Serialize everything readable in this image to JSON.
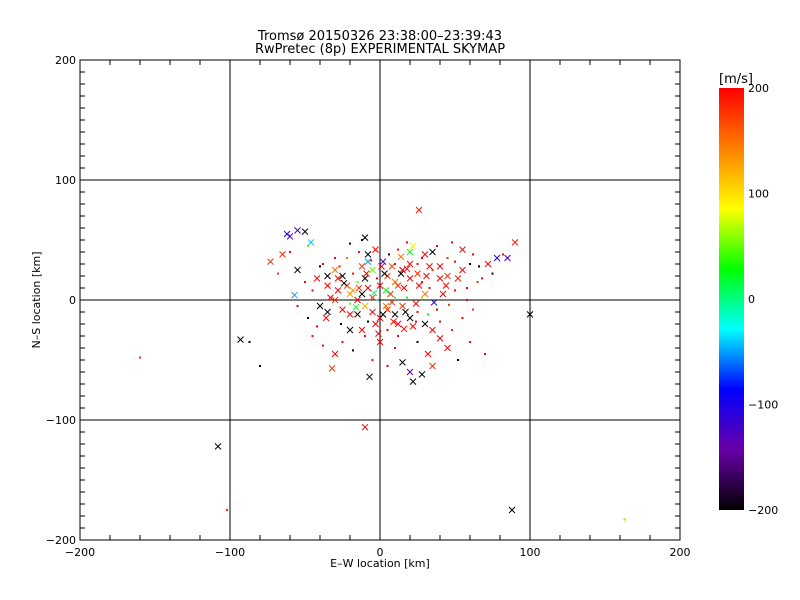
{
  "chart_data": {
    "type": "scatter",
    "title": "Tromsø 20150326 23:38:00–23:39:43",
    "subtitle": "RwPretec (8p) EXPERIMENTAL SKYMAP",
    "xlabel": "E–W location [km]",
    "ylabel": "N–S location [km]",
    "xlim": [
      -200,
      200
    ],
    "ylim": [
      -200,
      200
    ],
    "xticks": [
      -200,
      -100,
      0,
      100,
      200
    ],
    "yticks": [
      -200,
      -100,
      0,
      100,
      200
    ],
    "xtick_labels": [
      "−200",
      "−100",
      "0",
      "100",
      "200"
    ],
    "ytick_labels": [
      "−200",
      "−100",
      "0",
      "100",
      "200"
    ],
    "grid": true,
    "colorbar": {
      "title": "[m/s]",
      "range": [
        -200,
        200
      ],
      "ticks": [
        200,
        100,
        0,
        -100,
        -200
      ],
      "tick_labels": [
        "200",
        "100",
        "0",
        "−100",
        "−200"
      ],
      "colors": [
        "#000000",
        "#6a00a8",
        "#0000ff",
        "#00ffff",
        "#00ff00",
        "#ffff00",
        "#ff8000",
        "#ff0000"
      ]
    },
    "markers": [
      "x",
      "dot"
    ],
    "points": [
      [
        -160,
        -48,
        180,
        "dot"
      ],
      [
        -108,
        -122,
        -200,
        "x"
      ],
      [
        -102,
        -175,
        180,
        "dot"
      ],
      [
        -93,
        -33,
        -200,
        "x"
      ],
      [
        -80,
        -55,
        -200,
        "dot"
      ],
      [
        -87,
        -35,
        -200,
        "dot"
      ],
      [
        100,
        -12,
        -200,
        "x"
      ],
      [
        88,
        -175,
        -200,
        "x"
      ],
      [
        163,
        -183,
        50,
        "dot"
      ],
      [
        -10,
        -106,
        200,
        "x"
      ],
      [
        -32,
        -57,
        180,
        "x"
      ],
      [
        -7,
        -64,
        -200,
        "x"
      ],
      [
        26,
        75,
        190,
        "x"
      ],
      [
        -50,
        57,
        -200,
        "x"
      ],
      [
        -55,
        58,
        -130,
        "x"
      ],
      [
        -60,
        53,
        -140,
        "x"
      ],
      [
        -65,
        38,
        180,
        "x"
      ],
      [
        -73,
        32,
        180,
        "x"
      ],
      [
        -55,
        25,
        -200,
        "x"
      ],
      [
        -57,
        4,
        -50,
        "x"
      ],
      [
        -48,
        45,
        120,
        "dot"
      ],
      [
        -20,
        47,
        -200,
        "dot"
      ],
      [
        -12,
        50,
        -200,
        "dot"
      ],
      [
        -10,
        52,
        -200,
        "x"
      ],
      [
        -30,
        25,
        150,
        "x"
      ],
      [
        -25,
        20,
        -200,
        "x"
      ],
      [
        -35,
        12,
        200,
        "x"
      ],
      [
        -28,
        8,
        200,
        "x"
      ],
      [
        -22,
        12,
        170,
        "x"
      ],
      [
        -18,
        8,
        130,
        "x"
      ],
      [
        -15,
        15,
        50,
        "dot"
      ],
      [
        -12,
        5,
        -200,
        "x"
      ],
      [
        -8,
        10,
        200,
        "x"
      ],
      [
        -5,
        2,
        180,
        "x"
      ],
      [
        0,
        12,
        200,
        "x"
      ],
      [
        5,
        20,
        180,
        "x"
      ],
      [
        8,
        28,
        170,
        "x"
      ],
      [
        2,
        32,
        -120,
        "x"
      ],
      [
        10,
        15,
        150,
        "x"
      ],
      [
        15,
        25,
        200,
        "x"
      ],
      [
        20,
        30,
        200,
        "x"
      ],
      [
        25,
        22,
        180,
        "x"
      ],
      [
        28,
        35,
        200,
        "dot"
      ],
      [
        35,
        40,
        -200,
        "x"
      ],
      [
        40,
        28,
        200,
        "x"
      ],
      [
        45,
        20,
        180,
        "x"
      ],
      [
        50,
        32,
        200,
        "dot"
      ],
      [
        55,
        42,
        200,
        "x"
      ],
      [
        60,
        30,
        -200,
        "dot"
      ],
      [
        62,
        38,
        200,
        "dot"
      ],
      [
        66,
        28,
        -200,
        "dot"
      ],
      [
        72,
        30,
        200,
        "x"
      ],
      [
        78,
        35,
        -110,
        "x"
      ],
      [
        82,
        38,
        200,
        "dot"
      ],
      [
        85,
        35,
        -130,
        "x"
      ],
      [
        90,
        48,
        190,
        "x"
      ],
      [
        -40,
        -5,
        -200,
        "x"
      ],
      [
        -35,
        -10,
        -200,
        "x"
      ],
      [
        -30,
        0,
        180,
        "x"
      ],
      [
        -25,
        -8,
        200,
        "x"
      ],
      [
        -20,
        -3,
        50,
        "dot"
      ],
      [
        -15,
        -12,
        -200,
        "x"
      ],
      [
        -10,
        -5,
        120,
        "x"
      ],
      [
        -5,
        -10,
        200,
        "x"
      ],
      [
        0,
        -15,
        200,
        "x"
      ],
      [
        5,
        -8,
        180,
        "x"
      ],
      [
        10,
        -12,
        -200,
        "x"
      ],
      [
        12,
        -20,
        200,
        "x"
      ],
      [
        15,
        -5,
        180,
        "x"
      ],
      [
        20,
        -15,
        -200,
        "x"
      ],
      [
        25,
        -10,
        200,
        "dot"
      ],
      [
        30,
        -20,
        -200,
        "x"
      ],
      [
        35,
        -25,
        200,
        "x"
      ],
      [
        40,
        -18,
        200,
        "dot"
      ],
      [
        -45,
        -30,
        200,
        "dot"
      ],
      [
        -38,
        -38,
        200,
        "dot"
      ],
      [
        -30,
        -45,
        200,
        "x"
      ],
      [
        -20,
        -25,
        -200,
        "x"
      ],
      [
        -10,
        -30,
        200,
        "dot"
      ],
      [
        0,
        -35,
        200,
        "x"
      ],
      [
        10,
        -40,
        200,
        "dot"
      ],
      [
        15,
        -52,
        -200,
        "x"
      ],
      [
        20,
        -60,
        -150,
        "x"
      ],
      [
        22,
        -68,
        -200,
        "x"
      ],
      [
        28,
        -62,
        -200,
        "x"
      ],
      [
        32,
        -45,
        200,
        "x"
      ],
      [
        35,
        -55,
        180,
        "x"
      ],
      [
        45,
        -40,
        200,
        "x"
      ],
      [
        48,
        -25,
        180,
        "dot"
      ],
      [
        52,
        -50,
        -200,
        "dot"
      ],
      [
        60,
        -35,
        200,
        "dot"
      ],
      [
        70,
        -45,
        200,
        "dot"
      ],
      [
        -22,
        35,
        150,
        "dot"
      ],
      [
        -8,
        38,
        -200,
        "x"
      ],
      [
        12,
        42,
        200,
        "dot"
      ],
      [
        22,
        45,
        80,
        "x"
      ],
      [
        18,
        48,
        200,
        "dot"
      ],
      [
        30,
        38,
        200,
        "x"
      ],
      [
        38,
        45,
        200,
        "dot"
      ],
      [
        48,
        48,
        200,
        "dot"
      ],
      [
        58,
        10,
        200,
        "dot"
      ],
      [
        65,
        15,
        180,
        "dot"
      ],
      [
        42,
        5,
        200,
        "x"
      ],
      [
        50,
        8,
        200,
        "dot"
      ],
      [
        -50,
        15,
        200,
        "dot"
      ],
      [
        -45,
        8,
        200,
        "dot"
      ],
      [
        -40,
        28,
        -200,
        "dot"
      ],
      [
        -35,
        20,
        -200,
        "x"
      ],
      [
        -5,
        25,
        50,
        "x"
      ],
      [
        3,
        22,
        -200,
        "x"
      ],
      [
        -2,
        18,
        200,
        "dot"
      ],
      [
        7,
        5,
        180,
        "x"
      ],
      [
        18,
        2,
        30,
        "dot"
      ],
      [
        24,
        -3,
        200,
        "x"
      ],
      [
        30,
        5,
        150,
        "x"
      ],
      [
        36,
        -2,
        -110,
        "x"
      ],
      [
        33,
        10,
        200,
        "dot"
      ],
      [
        28,
        15,
        200,
        "dot"
      ],
      [
        -28,
        18,
        200,
        "x"
      ],
      [
        -18,
        22,
        200,
        "dot"
      ],
      [
        -12,
        28,
        180,
        "x"
      ],
      [
        -6,
        33,
        200,
        "dot"
      ],
      [
        4,
        8,
        30,
        "x"
      ],
      [
        8,
        -2,
        180,
        "x"
      ],
      [
        -3,
        -20,
        200,
        "x"
      ],
      [
        -8,
        -18,
        -200,
        "dot"
      ],
      [
        5,
        -25,
        200,
        "dot"
      ],
      [
        12,
        -30,
        200,
        "dot"
      ],
      [
        -15,
        0,
        200,
        "x"
      ],
      [
        -20,
        5,
        130,
        "x"
      ],
      [
        -10,
        18,
        -200,
        "x"
      ],
      [
        16,
        10,
        200,
        "x"
      ],
      [
        -60,
        40,
        200,
        "dot"
      ],
      [
        -62,
        55,
        -110,
        "x"
      ],
      [
        -46,
        48,
        -40,
        "x"
      ],
      [
        -68,
        22,
        180,
        "dot"
      ],
      [
        -55,
        -5,
        200,
        "dot"
      ],
      [
        -48,
        -15,
        -200,
        "dot"
      ],
      [
        -42,
        -22,
        200,
        "dot"
      ],
      [
        -25,
        -35,
        200,
        "dot"
      ],
      [
        -18,
        -42,
        -200,
        "dot"
      ],
      [
        -5,
        -50,
        200,
        "dot"
      ],
      [
        5,
        -55,
        200,
        "dot"
      ],
      [
        25,
        -35,
        -200,
        "dot"
      ],
      [
        40,
        -32,
        200,
        "x"
      ],
      [
        55,
        -15,
        200,
        "dot"
      ],
      [
        62,
        -8,
        180,
        "dot"
      ],
      [
        55,
        25,
        200,
        "x"
      ],
      [
        45,
        35,
        180,
        "dot"
      ],
      [
        33,
        28,
        200,
        "x"
      ],
      [
        25,
        30,
        200,
        "dot"
      ],
      [
        20,
        18,
        200,
        "x"
      ],
      [
        14,
        36,
        150,
        "x"
      ],
      [
        10,
        30,
        200,
        "dot"
      ],
      [
        -3,
        42,
        200,
        "x"
      ],
      [
        -14,
        40,
        190,
        "dot"
      ],
      [
        -30,
        35,
        200,
        "dot"
      ],
      [
        -38,
        30,
        200,
        "dot"
      ],
      [
        -42,
        18,
        200,
        "x"
      ],
      [
        -33,
        2,
        200,
        "x"
      ],
      [
        -36,
        -15,
        200,
        "x"
      ],
      [
        -26,
        -20,
        -200,
        "dot"
      ],
      [
        -12,
        -25,
        200,
        "x"
      ],
      [
        2,
        -12,
        -200,
        "x"
      ],
      [
        9,
        -18,
        200,
        "x"
      ],
      [
        17,
        -10,
        -200,
        "x"
      ],
      [
        22,
        -22,
        200,
        "x"
      ],
      [
        38,
        -8,
        200,
        "dot"
      ],
      [
        46,
        -4,
        180,
        "dot"
      ],
      [
        58,
        0,
        200,
        "dot"
      ],
      [
        68,
        18,
        200,
        "dot"
      ],
      [
        75,
        22,
        -200,
        "dot"
      ],
      [
        40,
        18,
        200,
        "x"
      ],
      [
        35,
        25,
        180,
        "dot"
      ],
      [
        10,
        2,
        0,
        "dot"
      ],
      [
        -4,
        6,
        0,
        "x"
      ],
      [
        -16,
        -6,
        20,
        "x"
      ],
      [
        28,
        2,
        60,
        "dot"
      ],
      [
        32,
        -12,
        20,
        "dot"
      ],
      [
        20,
        40,
        20,
        "x"
      ],
      [
        -8,
        32,
        -50,
        "x"
      ],
      [
        -2,
        0,
        -30,
        "dot"
      ],
      [
        14,
        22,
        -200,
        "x"
      ],
      [
        6,
        38,
        -200,
        "dot"
      ],
      [
        -24,
        14,
        -200,
        "x"
      ],
      [
        -20,
        -12,
        200,
        "x"
      ],
      [
        4,
        -5,
        150,
        "x"
      ],
      [
        12,
        12,
        180,
        "x"
      ],
      [
        18,
        26,
        200,
        "x"
      ],
      [
        26,
        12,
        200,
        "x"
      ],
      [
        31,
        20,
        200,
        "x"
      ],
      [
        -9,
        22,
        200,
        "x"
      ],
      [
        -14,
        10,
        180,
        "x"
      ],
      [
        1,
        28,
        200,
        "x"
      ],
      [
        -27,
        28,
        200,
        "dot"
      ],
      [
        16,
        -24,
        200,
        "x"
      ],
      [
        -1,
        -28,
        200,
        "x"
      ],
      [
        24,
        -18,
        200,
        "dot"
      ],
      [
        44,
        12,
        200,
        "x"
      ],
      [
        52,
        18,
        190,
        "x"
      ]
    ]
  }
}
